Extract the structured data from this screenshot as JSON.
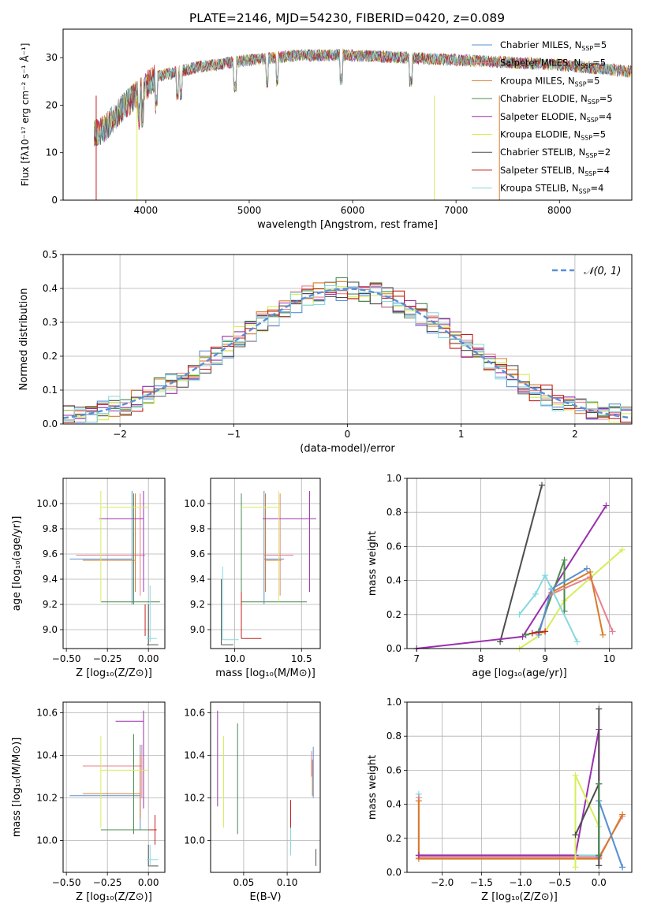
{
  "figure": {
    "title": "PLATE=2146, MJD=54230, FIBERID=0420, z=0.089"
  },
  "colors": {
    "chabrier_miles": "#5b8fd6",
    "salpeter_miles": "#e8808f",
    "kroupa_miles": "#d97b2a",
    "chabrier_elodie": "#4a8a4f",
    "salpeter_elodie": "#9b2fae",
    "kroupa_elodie": "#d6ee58",
    "chabrier_stelib": "#4d4d4d",
    "salpeter_stelib": "#c0211f",
    "kroupa_stelib": "#86d8e0",
    "normal_curve": "#5b8fd6",
    "grid": "#b0b0b0"
  },
  "chart_data": [
    {
      "id": "spectrum",
      "type": "line",
      "xlabel": "wavelength [Angstrom, rest frame]",
      "ylabel": "Flux [fλ10⁻¹⁷ erg cm⁻² s⁻¹ Å⁻¹]",
      "xlim": [
        3200,
        8700
      ],
      "ylim": [
        0,
        36
      ],
      "xticks": [
        4000,
        5000,
        6000,
        7000,
        8000
      ],
      "yticks": [
        0,
        10,
        20,
        30
      ],
      "grid": false,
      "legend_position": "right",
      "continuum": {
        "x": [
          3500,
          3600,
          3800,
          4000,
          4100,
          4500,
          5000,
          5500,
          6000,
          6500,
          7000,
          7500,
          8000,
          8500,
          8700
        ],
        "y": [
          14,
          15,
          20,
          24,
          26,
          28,
          29.5,
          30.5,
          30.5,
          30,
          29.5,
          29,
          28.5,
          27.5,
          27
        ]
      },
      "series": [
        {
          "name": "Chabrier MILES, N$_{SSP}$=5",
          "color_key": "chabrier_miles"
        },
        {
          "name": "Salpeter MILES, N$_{SSP}$=5",
          "color_key": "salpeter_miles"
        },
        {
          "name": "Kroupa MILES, N$_{SSP}$=5",
          "color_key": "kroupa_miles"
        },
        {
          "name": "Chabrier ELODIE, N$_{SSP}$=5",
          "color_key": "chabrier_elodie"
        },
        {
          "name": "Salpeter ELODIE, N$_{SSP}$=4",
          "color_key": "salpeter_elodie"
        },
        {
          "name": "Kroupa ELODIE, N$_{SSP}$=5",
          "color_key": "kroupa_elodie"
        },
        {
          "name": "Chabrier STELIB, N$_{SSP}$=2",
          "color_key": "chabrier_stelib"
        },
        {
          "name": "Salpeter STELIB, N$_{SSP}$=4",
          "color_key": "salpeter_stelib"
        },
        {
          "name": "Kroupa STELIB, N$_{SSP}$=4",
          "color_key": "kroupa_stelib"
        }
      ]
    },
    {
      "id": "residuals",
      "type": "step-histogram",
      "xlabel": "(data-model)/error",
      "ylabel": "Normed distribution",
      "xlim": [
        -2.5,
        2.5
      ],
      "ylim": [
        0,
        0.5
      ],
      "xticks": [
        -2,
        -1,
        0,
        1,
        2
      ],
      "xticklabels": [
        "−2",
        "−1",
        "0",
        "1",
        "2"
      ],
      "yticks": [
        0.0,
        0.1,
        0.2,
        0.3,
        0.4,
        0.5
      ],
      "yticklabels": [
        "0.0",
        "0.1",
        "0.2",
        "0.3",
        "0.4",
        "0.5"
      ],
      "grid": true,
      "legend_position": "top-right",
      "legend": "𝒩(0, 1)",
      "bin_width": 0.1
    },
    {
      "id": "age_vs_Z",
      "type": "errorbar",
      "xlabel": "Z [log₁₀(Z/Z⊙)]",
      "ylabel": "age  [log₁₀(age/yr)]",
      "xlim": [
        -0.52,
        0.1
      ],
      "ylim": [
        8.85,
        10.2
      ],
      "xticks": [
        -0.5,
        -0.25,
        0.0
      ],
      "xticklabels": [
        "−0.50",
        "−0.25",
        "0.00"
      ],
      "yticks": [
        9.0,
        9.2,
        9.4,
        9.6,
        9.8,
        10.0
      ],
      "yticklabels": [
        "9.0",
        "9.2",
        "9.4",
        "9.6",
        "9.8",
        "10.0"
      ],
      "grid": true,
      "points": [
        {
          "c": "chabrier_miles",
          "x": -0.1,
          "xl": -0.48,
          "xh": -0.1,
          "y": 9.56,
          "yl": 9.2,
          "yh": 10.1
        },
        {
          "c": "salpeter_miles",
          "x": -0.05,
          "xl": -0.44,
          "xh": -0.02,
          "y": 9.59,
          "yl": 9.27,
          "yh": 10.08
        },
        {
          "c": "kroupa_miles",
          "x": -0.08,
          "xl": -0.4,
          "xh": -0.08,
          "y": 9.55,
          "yl": 9.3,
          "yh": 10.08
        },
        {
          "c": "chabrier_elodie",
          "x": -0.09,
          "xl": -0.29,
          "xh": 0.07,
          "y": 9.22,
          "yl": 9.2,
          "yh": 10.08
        },
        {
          "c": "salpeter_elodie",
          "x": -0.03,
          "xl": -0.3,
          "xh": -0.03,
          "y": 9.88,
          "yl": 9.3,
          "yh": 10.1
        },
        {
          "c": "kroupa_elodie",
          "x": -0.29,
          "xl": -0.29,
          "xh": 0.0,
          "y": 9.97,
          "yl": 9.22,
          "yh": 10.1
        },
        {
          "c": "chabrier_stelib",
          "x": -0.0,
          "xl": -0.01,
          "xh": 0.06,
          "y": 8.88,
          "yl": 8.88,
          "yh": 9.2
        },
        {
          "c": "salpeter_stelib",
          "x": -0.02,
          "xl": -0.02,
          "xh": -0.02,
          "y": 9.05,
          "yl": 8.95,
          "yh": 9.2
        },
        {
          "c": "kroupa_stelib",
          "x": 0.01,
          "xl": -0.01,
          "xh": 0.05,
          "y": 8.93,
          "yl": 8.9,
          "yh": 9.35
        }
      ]
    },
    {
      "id": "age_vs_mass",
      "type": "errorbar",
      "xlabel": "mass [log₁₀(M/M⊙)]",
      "ylabel": "",
      "xlim": [
        9.82,
        10.64
      ],
      "ylim": [
        8.85,
        10.2
      ],
      "xticks": [
        10.0,
        10.5
      ],
      "xticklabels": [
        "10.0",
        "10.5"
      ],
      "yticks": [
        9.0,
        9.2,
        9.4,
        9.6,
        9.8,
        10.0
      ],
      "yticklabels": [
        "9.0",
        "9.2",
        "9.4",
        "9.6",
        "9.8",
        "10.0"
      ],
      "grid": true,
      "points": [
        {
          "c": "chabrier_miles",
          "x": 10.22,
          "xl": 10.22,
          "xh": 10.37,
          "y": 9.56,
          "yl": 9.2,
          "yh": 10.1
        },
        {
          "c": "salpeter_miles",
          "x": 10.34,
          "xl": 10.22,
          "xh": 10.44,
          "y": 9.59,
          "yl": 9.27,
          "yh": 10.08
        },
        {
          "c": "kroupa_miles",
          "x": 10.23,
          "xl": 10.23,
          "xh": 10.35,
          "y": 9.55,
          "yl": 9.3,
          "yh": 10.08
        },
        {
          "c": "chabrier_elodie",
          "x": 10.05,
          "xl": 10.05,
          "xh": 10.54,
          "y": 9.22,
          "yl": 9.2,
          "yh": 10.08
        },
        {
          "c": "salpeter_elodie",
          "x": 10.56,
          "xl": 10.21,
          "xh": 10.61,
          "y": 9.88,
          "yl": 9.3,
          "yh": 10.1
        },
        {
          "c": "kroupa_elodie",
          "x": 10.33,
          "xl": 10.05,
          "xh": 10.33,
          "y": 9.97,
          "yl": 9.22,
          "yh": 10.1
        },
        {
          "c": "chabrier_stelib",
          "x": 9.9,
          "xl": 9.9,
          "xh": 9.99,
          "y": 8.88,
          "yl": 8.88,
          "yh": 9.4
        },
        {
          "c": "salpeter_stelib",
          "x": 10.05,
          "xl": 10.05,
          "xh": 10.2,
          "y": 8.93,
          "yl": 8.93,
          "yh": 9.3
        },
        {
          "c": "kroupa_stelib",
          "x": 9.91,
          "xl": 9.91,
          "xh": 10.03,
          "y": 8.92,
          "yl": 8.92,
          "yh": 9.5
        }
      ]
    },
    {
      "id": "weight_vs_age",
      "type": "line",
      "xlabel": "age  [log₁₀(age/yr)]",
      "ylabel": "mass weight",
      "xlim": [
        6.85,
        10.35
      ],
      "ylim": [
        0,
        1
      ],
      "xticks": [
        7,
        8,
        9,
        10
      ],
      "xticklabels": [
        "7",
        "8",
        "9",
        "10"
      ],
      "yticks": [
        0,
        0.2,
        0.4,
        0.6,
        0.8,
        1.0
      ],
      "yticklabels": [
        "0.0",
        "0.2",
        "0.4",
        "0.6",
        "0.8",
        "1.0"
      ],
      "grid": true,
      "series": [
        {
          "c": "chabrier_stelib",
          "x": [
            8.3,
            8.95
          ],
          "y": [
            0.04,
            0.96
          ]
        },
        {
          "c": "salpeter_elodie",
          "x": [
            7.0,
            8.65,
            9.95
          ],
          "y": [
            0.0,
            0.07,
            0.84
          ]
        },
        {
          "c": "kroupa_elodie",
          "x": [
            8.6,
            9.0,
            9.3,
            10.2
          ],
          "y": [
            0.0,
            0.1,
            0.28,
            0.58
          ]
        },
        {
          "c": "chabrier_elodie",
          "x": [
            8.7,
            8.9,
            9.3,
            9.3
          ],
          "y": [
            0.08,
            0.1,
            0.52,
            0.22
          ]
        },
        {
          "c": "salpeter_miles",
          "x": [
            9.1,
            9.7,
            10.05
          ],
          "y": [
            0.32,
            0.42,
            0.1
          ]
        },
        {
          "c": "kroupa_miles",
          "x": [
            9.1,
            9.7,
            9.9
          ],
          "y": [
            0.33,
            0.45,
            0.08
          ]
        },
        {
          "c": "chabrier_miles",
          "x": [
            8.9,
            9.1,
            9.65
          ],
          "y": [
            0.08,
            0.35,
            0.47
          ]
        },
        {
          "c": "kroupa_stelib",
          "x": [
            8.6,
            8.85,
            9.0,
            9.5
          ],
          "y": [
            0.2,
            0.32,
            0.43,
            0.04
          ]
        },
        {
          "c": "salpeter_stelib",
          "x": [
            8.8,
            9.0
          ],
          "y": [
            0.09,
            0.1
          ]
        }
      ]
    },
    {
      "id": "mass_vs_Z",
      "type": "errorbar",
      "xlabel": "Z [log₁₀(Z/Z⊙)]",
      "ylabel": "mass [log₁₀(M/M⊙)]",
      "xlim": [
        -0.52,
        0.1
      ],
      "ylim": [
        9.85,
        10.65
      ],
      "xticks": [
        -0.5,
        -0.25,
        0.0
      ],
      "xticklabels": [
        "−0.50",
        "−0.25",
        "0.00"
      ],
      "yticks": [
        10.0,
        10.2,
        10.4,
        10.6
      ],
      "yticklabels": [
        "10.0",
        "10.2",
        "10.4",
        "10.6"
      ],
      "grid": true,
      "points": [
        {
          "c": "chabrier_miles",
          "x": -0.05,
          "xl": -0.48,
          "xh": -0.05,
          "y": 10.21,
          "yl": 10.05,
          "yh": 10.45
        },
        {
          "c": "salpeter_miles",
          "x": -0.04,
          "xl": -0.4,
          "xh": -0.04,
          "y": 10.35,
          "yl": 10.2,
          "yh": 10.45
        },
        {
          "c": "kroupa_miles",
          "x": -0.05,
          "xl": -0.4,
          "xh": -0.05,
          "y": 10.22,
          "yl": 10.1,
          "yh": 10.4
        },
        {
          "c": "chabrier_elodie",
          "x": -0.09,
          "xl": -0.29,
          "xh": 0.05,
          "y": 10.05,
          "yl": 10.03,
          "yh": 10.5
        },
        {
          "c": "salpeter_elodie",
          "x": -0.03,
          "xl": -0.2,
          "xh": -0.03,
          "y": 10.56,
          "yl": 10.15,
          "yh": 10.61
        },
        {
          "c": "kroupa_elodie",
          "x": -0.29,
          "xl": -0.29,
          "xh": 0.0,
          "y": 10.33,
          "yl": 10.06,
          "yh": 10.49
        },
        {
          "c": "chabrier_stelib",
          "x": -0.0,
          "xl": -0.0,
          "xh": 0.06,
          "y": 9.88,
          "yl": 9.88,
          "yh": 9.98
        },
        {
          "c": "salpeter_stelib",
          "x": 0.04,
          "xl": 0.0,
          "xh": 0.05,
          "y": 10.05,
          "yl": 9.98,
          "yh": 10.12
        },
        {
          "c": "kroupa_stelib",
          "x": 0.01,
          "xl": -0.01,
          "xh": 0.06,
          "y": 9.91,
          "yl": 9.88,
          "yh": 9.98
        }
      ]
    },
    {
      "id": "mass_vs_ebv",
      "type": "errorbar",
      "xlabel": "E(B-V)",
      "ylabel": "",
      "xlim": [
        0.012,
        0.138
      ],
      "ylim": [
        9.85,
        10.65
      ],
      "xticks": [
        0.05,
        0.1
      ],
      "xticklabels": [
        "0.05",
        "0.10"
      ],
      "yticks": [
        10.0,
        10.2,
        10.4,
        10.6
      ],
      "yticklabels": [
        "10.0",
        "10.2",
        "10.4",
        "10.6"
      ],
      "grid": true,
      "points": [
        {
          "c": "salpeter_elodie",
          "x": 0.02,
          "y": 10.44,
          "yl": 10.16,
          "yh": 10.61
        },
        {
          "c": "kroupa_elodie",
          "x": 0.027,
          "y": 10.3,
          "yl": 10.06,
          "yh": 10.49
        },
        {
          "c": "chabrier_elodie",
          "x": 0.043,
          "y": 10.3,
          "yl": 10.03,
          "yh": 10.55
        },
        {
          "c": "salpeter_stelib",
          "x": 0.104,
          "y": 10.05,
          "yl": 9.98,
          "yh": 10.19
        },
        {
          "c": "kroupa_stelib",
          "x": 0.104,
          "y": 9.98,
          "yl": 9.93,
          "yh": 10.06
        },
        {
          "c": "salpeter_miles",
          "x": 0.128,
          "y": 10.35,
          "yl": 10.3,
          "yh": 10.42
        },
        {
          "c": "kroupa_miles",
          "x": 0.129,
          "y": 10.3,
          "yl": 10.21,
          "yh": 10.38
        },
        {
          "c": "chabrier_miles",
          "x": 0.13,
          "y": 10.34,
          "yl": 10.2,
          "yh": 10.44
        },
        {
          "c": "chabrier_stelib",
          "x": 0.133,
          "y": 9.92,
          "yl": 9.88,
          "yh": 9.96
        }
      ]
    },
    {
      "id": "weight_vs_Z",
      "type": "line",
      "xlabel": "Z [log₁₀(Z/Z⊙)]",
      "ylabel": "mass weight",
      "xlim": [
        -2.45,
        0.42
      ],
      "ylim": [
        0,
        1
      ],
      "xticks": [
        -2.0,
        -1.5,
        -1.0,
        -0.5,
        0.0
      ],
      "xticklabels": [
        "−2.0",
        "−1.5",
        "−1.0",
        "−0.5",
        "0.0"
      ],
      "yticks": [
        0,
        0.2,
        0.4,
        0.6,
        0.8,
        1.0
      ],
      "yticklabels": [
        "0.0",
        "0.2",
        "0.4",
        "0.6",
        "0.8",
        "1.0"
      ],
      "grid": true,
      "series": [
        {
          "c": "kroupa_stelib",
          "x": [
            -2.3,
            -2.3,
            0.0,
            0.0,
            0.3
          ],
          "y": [
            0.46,
            0.1,
            0.1,
            0.42,
            0.03
          ]
        },
        {
          "c": "salpeter_miles",
          "x": [
            -2.3,
            -2.3,
            0.0,
            0.3
          ],
          "y": [
            0.44,
            0.09,
            0.09,
            0.33
          ]
        },
        {
          "c": "kroupa_miles",
          "x": [
            -2.3,
            -2.3,
            0.0,
            0.3
          ],
          "y": [
            0.42,
            0.08,
            0.08,
            0.34
          ]
        },
        {
          "c": "salpeter_elodie",
          "x": [
            -2.3,
            -0.3,
            -0.0,
            -0.0
          ],
          "y": [
            0.1,
            0.1,
            0.84,
            0.09
          ]
        },
        {
          "c": "kroupa_elodie",
          "x": [
            -0.3,
            -0.3,
            0.0,
            0.0
          ],
          "y": [
            0.03,
            0.57,
            0.27,
            0.1
          ]
        },
        {
          "c": "chabrier_stelib",
          "x": [
            -0.3,
            0.0,
            0.0,
            0.0
          ],
          "y": [
            0.22,
            0.52,
            0.96,
            0.04
          ]
        },
        {
          "c": "chabrier_miles",
          "x": [
            0.0,
            0.0,
            0.3
          ],
          "y": [
            0.1,
            0.42,
            0.03
          ]
        },
        {
          "c": "chabrier_elodie",
          "x": [
            0.0,
            0.0
          ],
          "y": [
            0.52,
            0.1
          ]
        }
      ]
    }
  ]
}
